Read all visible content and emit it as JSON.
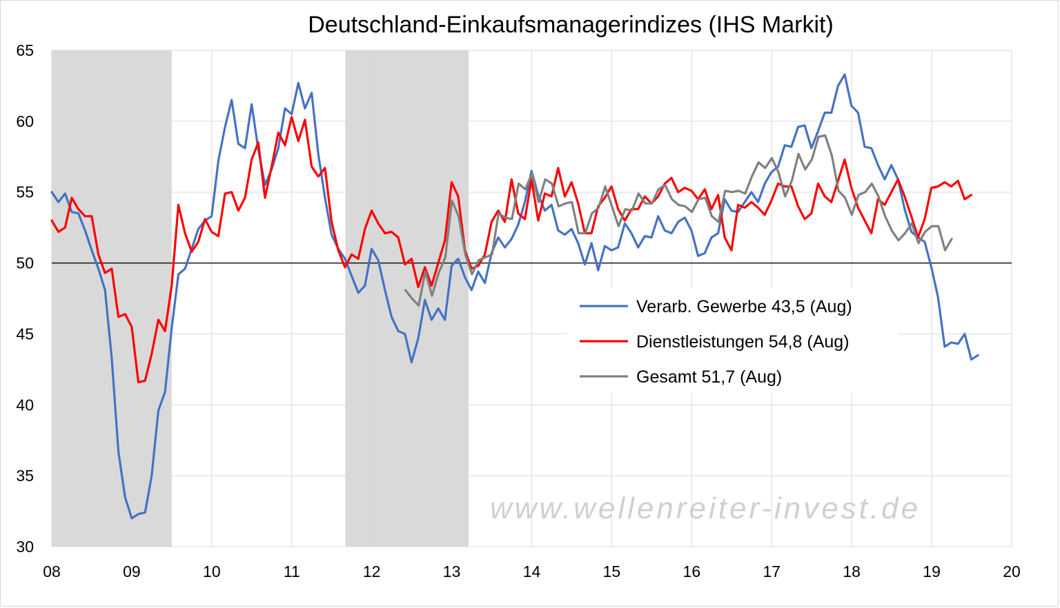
{
  "chart_data": {
    "type": "line",
    "title": "Deutschland-Einkaufsmanagerindizes (IHS Markit)",
    "xlabel": "",
    "ylabel": "",
    "ylim": [
      30,
      65
    ],
    "xlim": [
      2008.0,
      2020.0
    ],
    "y_ticks": [
      "30",
      "35",
      "40",
      "45",
      "50",
      "55",
      "60",
      "65"
    ],
    "x_ticks": [
      "08",
      "09",
      "10",
      "11",
      "12",
      "13",
      "14",
      "15",
      "16",
      "17",
      "18",
      "19",
      "20"
    ],
    "grid": true,
    "reference_line": 50,
    "recession_shading": [
      [
        2008.0,
        2009.5
      ],
      [
        2011.67,
        2013.21
      ]
    ],
    "legend_position": "center-right",
    "watermark": "www.wellenreiter-invest.de",
    "series": [
      {
        "name": "Verarb. Gewerbe 43,5 (Aug)",
        "color": "#4472c4",
        "x_start": 2008.0,
        "step": 0.0833,
        "values": [
          55.0,
          54.3,
          54.9,
          53.6,
          53.5,
          52.3,
          50.9,
          49.6,
          48.1,
          43.3,
          36.7,
          33.5,
          32.0,
          32.3,
          32.4,
          35.0,
          39.6,
          40.9,
          45.4,
          49.2,
          49.6,
          51.0,
          52.4,
          53.0,
          53.3,
          57.2,
          59.6,
          61.5,
          58.4,
          58.1,
          61.2,
          58.0,
          55.5,
          56.6,
          58.1,
          60.9,
          60.5,
          62.7,
          60.9,
          62.0,
          57.7,
          54.6,
          52.0,
          51.0,
          50.3,
          49.1,
          47.9,
          48.4,
          51.0,
          50.2,
          48.1,
          46.2,
          45.2,
          45.0,
          43.0,
          44.7,
          47.4,
          46.0,
          46.8,
          46.0,
          49.8,
          50.3,
          49.0,
          48.1,
          49.4,
          48.6,
          50.7,
          51.8,
          51.1,
          51.7,
          52.7,
          54.3,
          56.5,
          54.8,
          53.7,
          54.1,
          52.3,
          52.0,
          52.4,
          51.4,
          49.9,
          51.4,
          49.5,
          51.2,
          50.9,
          51.1,
          52.8,
          52.1,
          51.1,
          51.9,
          51.8,
          53.3,
          52.3,
          52.1,
          52.9,
          53.2,
          52.3,
          50.5,
          50.7,
          51.8,
          52.1,
          54.5,
          53.7,
          53.6,
          54.3,
          55.0,
          54.3,
          55.6,
          56.4,
          56.8,
          58.3,
          58.2,
          59.6,
          59.7,
          58.1,
          59.3,
          60.6,
          60.6,
          62.5,
          63.3,
          61.1,
          60.6,
          58.2,
          58.1,
          56.9,
          55.9,
          56.9,
          55.9,
          53.8,
          52.2,
          51.8,
          51.5,
          49.7,
          47.6,
          44.1,
          44.4,
          44.3,
          45.0,
          43.2,
          43.5
        ]
      },
      {
        "name": "Dienstleistungen 54,8 (Aug)",
        "color": "#ff0000",
        "x_start": 2008.0,
        "step": 0.0833,
        "values": [
          53.0,
          52.2,
          52.5,
          54.6,
          53.8,
          53.3,
          53.3,
          50.6,
          49.3,
          49.6,
          46.2,
          46.4,
          45.5,
          41.6,
          41.7,
          43.6,
          46.0,
          45.2,
          48.4,
          54.1,
          52.1,
          50.8,
          51.5,
          53.1,
          52.2,
          51.9,
          54.9,
          55.0,
          53.7,
          54.6,
          57.3,
          58.5,
          54.6,
          56.8,
          59.2,
          58.3,
          60.3,
          58.6,
          60.1,
          56.8,
          56.1,
          56.7,
          52.9,
          50.9,
          49.7,
          50.6,
          50.3,
          52.4,
          53.7,
          52.8,
          52.1,
          52.2,
          51.8,
          49.9,
          50.3,
          48.3,
          49.7,
          48.4,
          50.0,
          51.6,
          55.7,
          54.7,
          50.9,
          49.6,
          49.8,
          50.6,
          52.9,
          53.7,
          52.9,
          55.9,
          53.5,
          53.1,
          55.9,
          53.0,
          54.9,
          54.7,
          56.7,
          54.7,
          55.7,
          54.2,
          52.1,
          52.1,
          54.0,
          54.6,
          55.4,
          53.8,
          53.0,
          53.8,
          53.8,
          54.7,
          54.2,
          54.7,
          55.6,
          56.0,
          55.0,
          55.3,
          55.1,
          54.5,
          55.2,
          53.8,
          54.8,
          51.8,
          50.9,
          54.1,
          53.9,
          54.3,
          53.9,
          53.4,
          54.4,
          55.6,
          55.4,
          55.4,
          54.0,
          53.1,
          53.5,
          55.6,
          54.7,
          54.3,
          55.8,
          57.3,
          55.3,
          53.9,
          53.0,
          52.1,
          54.5,
          54.1,
          55.0,
          55.9,
          54.7,
          53.3,
          51.8,
          53.1,
          55.3,
          55.4,
          55.7,
          55.4,
          55.8,
          54.5,
          54.8
        ]
      },
      {
        "name": "Gesamt 51,7 (Aug)",
        "color": "#808080",
        "x_start": 2012.42,
        "step": 0.0833,
        "values": [
          48.1,
          47.5,
          47.0,
          49.4,
          47.7,
          49.3,
          50.4,
          54.4,
          53.3,
          50.6,
          49.2,
          50.2,
          50.4,
          50.6,
          53.5,
          53.2,
          53.1,
          55.6,
          55.2,
          56.3,
          54.3,
          55.9,
          55.6,
          54.0,
          54.2,
          54.3,
          52.1,
          52.1,
          53.5,
          53.9,
          55.4,
          54.0,
          52.6,
          53.8,
          53.7,
          54.9,
          54.2,
          54.2,
          55.2,
          55.5,
          54.5,
          54.1,
          54.0,
          53.6,
          54.5,
          54.6,
          53.3,
          52.9,
          55.1,
          55.0,
          55.1,
          54.9,
          56.1,
          57.1,
          56.7,
          57.4,
          56.4,
          54.7,
          55.8,
          57.7,
          56.6,
          57.3,
          58.9,
          59.0,
          57.6,
          55.1,
          54.6,
          53.4,
          54.8,
          55.0,
          55.6,
          54.7,
          53.3,
          52.3,
          51.6,
          52.1,
          52.8,
          51.4,
          52.2,
          52.6,
          52.6,
          50.9,
          51.7
        ]
      }
    ]
  }
}
